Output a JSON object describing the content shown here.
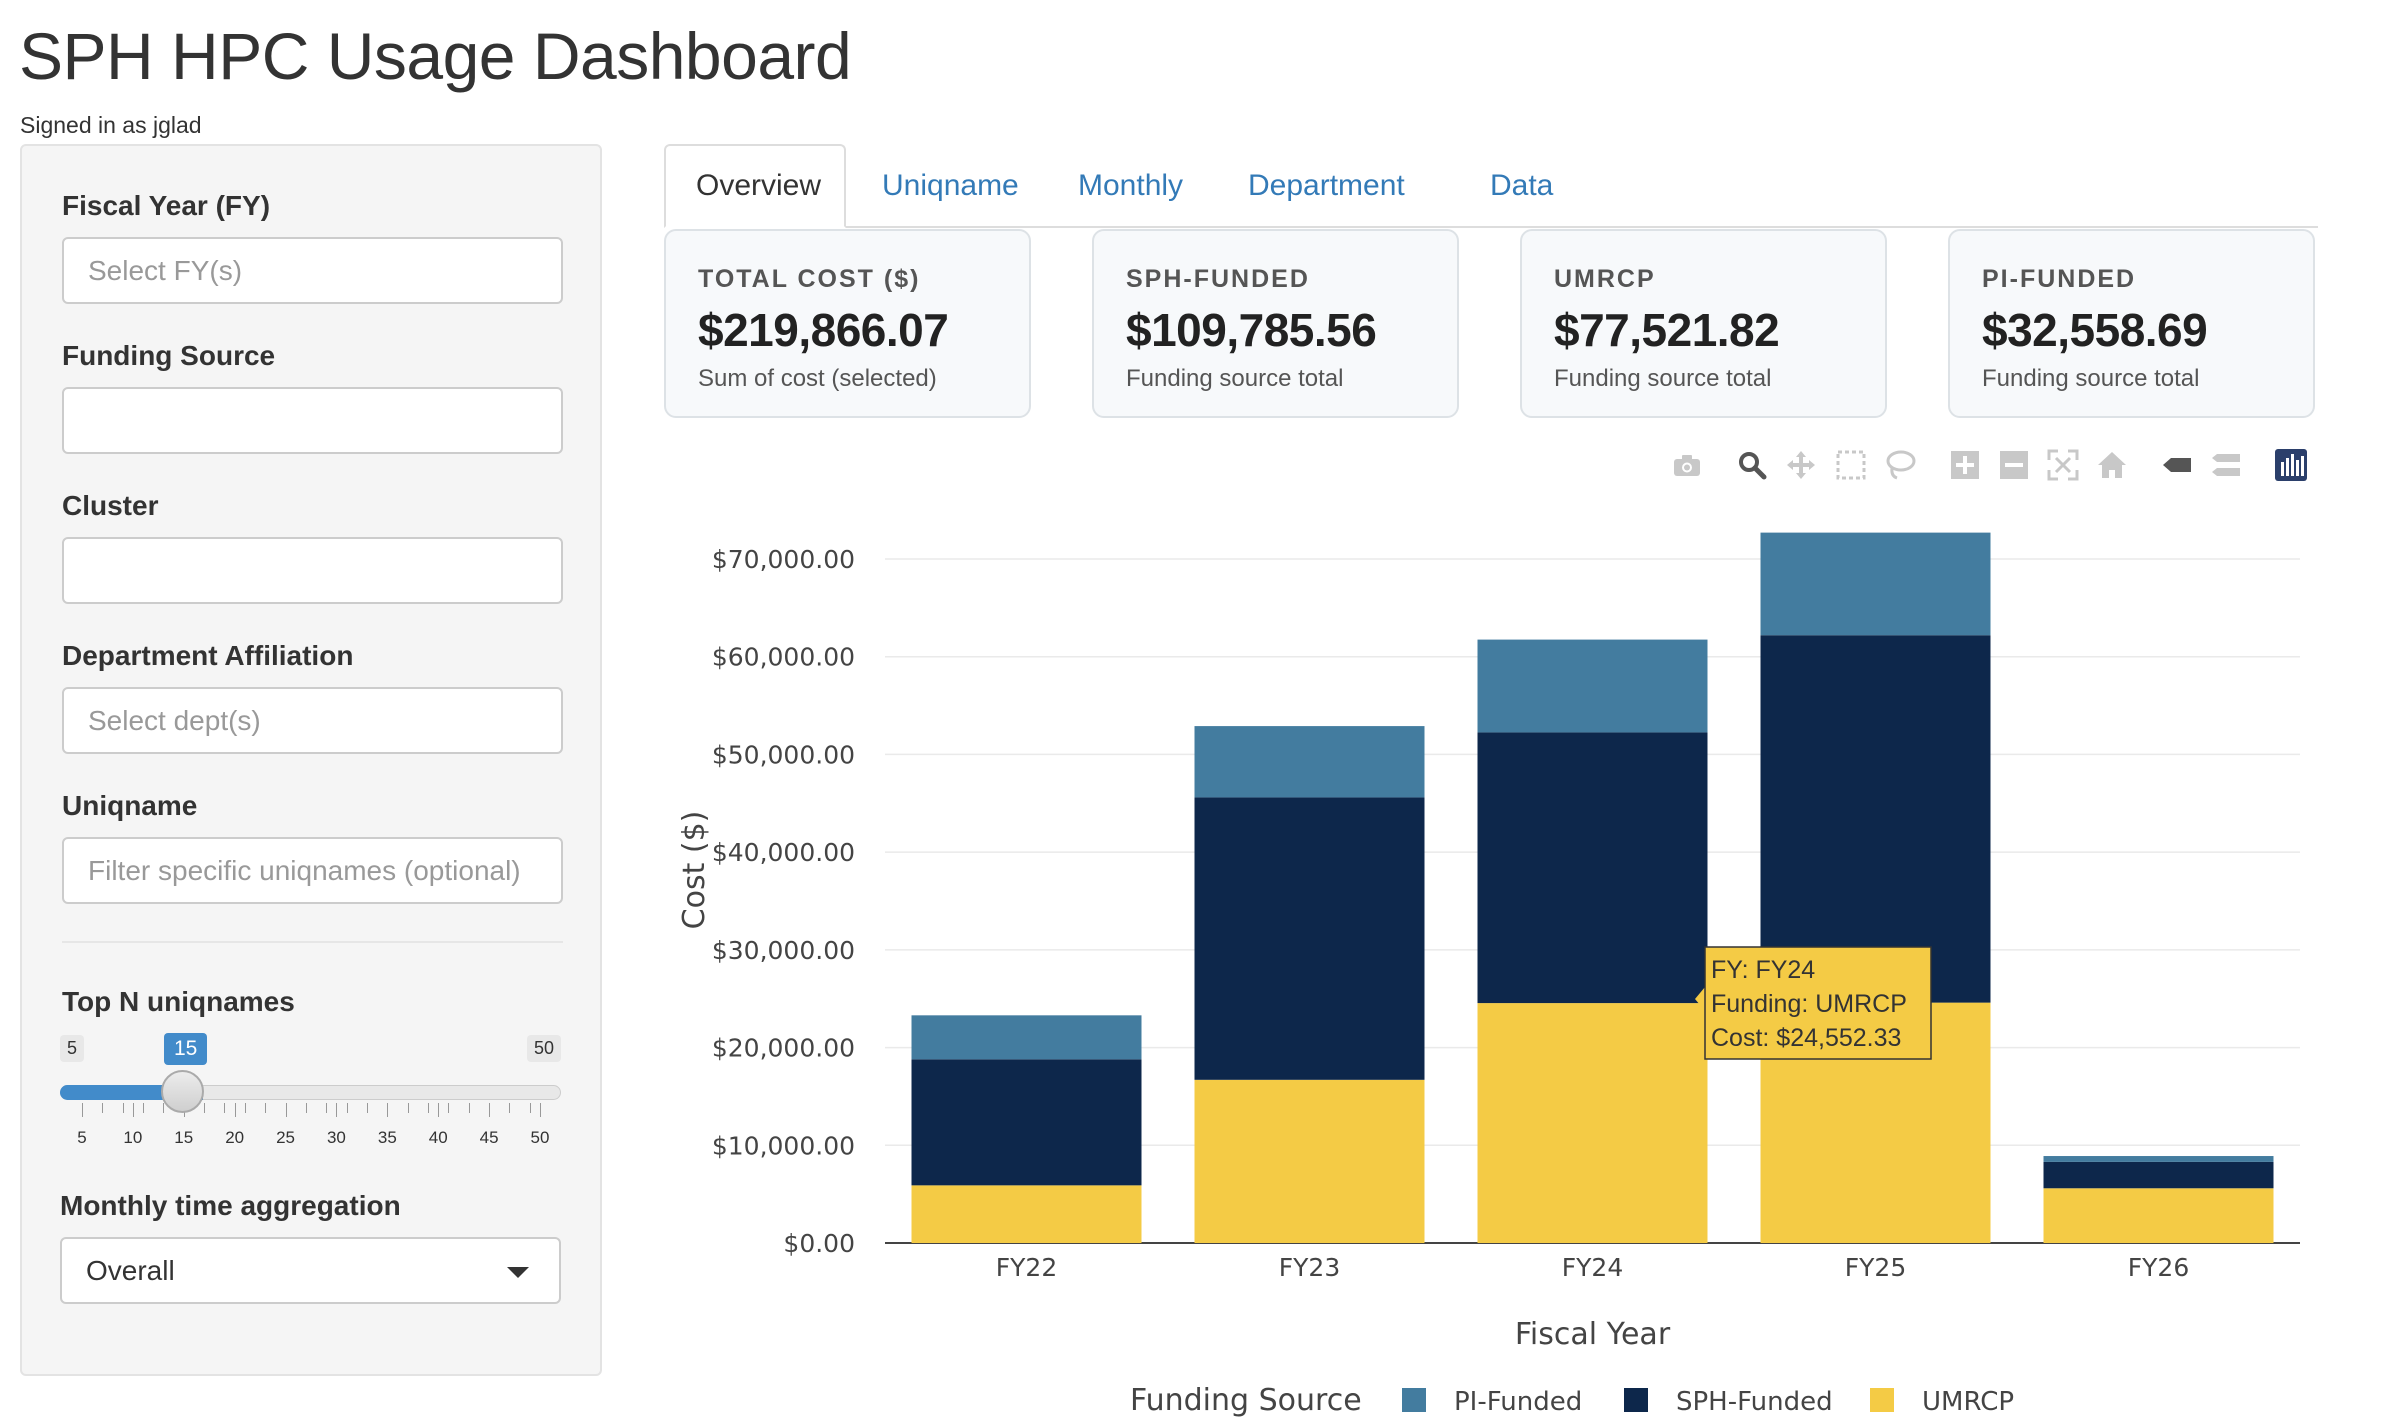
{
  "header": {
    "title": "SPH HPC Usage Dashboard",
    "signed_in": "Signed in as jglad"
  },
  "sidebar": {
    "fiscal_year": {
      "label": "Fiscal Year (FY)",
      "placeholder": "Select FY(s)"
    },
    "funding_source": {
      "label": "Funding Source",
      "value": ""
    },
    "cluster": {
      "label": "Cluster",
      "value": ""
    },
    "department": {
      "label": "Department Affiliation",
      "placeholder": "Select dept(s)"
    },
    "uniqname": {
      "label": "Uniqname",
      "placeholder": "Filter specific uniqnames (optional)"
    },
    "top_n": {
      "label": "Top N uniqnames",
      "min": 5,
      "max": 50,
      "value": 15,
      "min_label": "5",
      "max_label": "50",
      "value_label": "15",
      "tick_labels": [
        "5",
        "10",
        "15",
        "20",
        "25",
        "30",
        "35",
        "40",
        "45",
        "50"
      ]
    },
    "aggregation": {
      "label": "Monthly time aggregation",
      "value": "Overall"
    }
  },
  "tabs": [
    {
      "label": "Overview",
      "active": true
    },
    {
      "label": "Uniqname",
      "active": false
    },
    {
      "label": "Monthly",
      "active": false
    },
    {
      "label": "Department",
      "active": false
    },
    {
      "label": "Data",
      "active": false
    }
  ],
  "cards": [
    {
      "label": "TOTAL COST ($)",
      "value": "$219,866.07",
      "sub": "Sum of cost (selected)"
    },
    {
      "label": "SPH-FUNDED",
      "value": "$109,785.56",
      "sub": "Funding source total"
    },
    {
      "label": "UMRCP",
      "value": "$77,521.82",
      "sub": "Funding source total"
    },
    {
      "label": "PI-FUNDED",
      "value": "$32,558.69",
      "sub": "Funding source total"
    }
  ],
  "modebar": [
    "camera-icon",
    "zoom-icon",
    "pan-icon",
    "box-select-icon",
    "lasso-icon",
    "zoom-in-icon",
    "zoom-out-icon",
    "autoscale-icon",
    "reset-axes-icon",
    "hover-closest-icon",
    "hover-compare-icon",
    "plotly-logo-icon"
  ],
  "chart_data": {
    "type": "bar",
    "stacked": true,
    "categories": [
      "FY22",
      "FY23",
      "FY24",
      "FY25",
      "FY26"
    ],
    "series": [
      {
        "name": "UMRCP",
        "color": "#f4cb45",
        "values": [
          5900,
          16700,
          24552.33,
          24600,
          5600
        ]
      },
      {
        "name": "SPH-Funded",
        "color": "#0d274b",
        "values": [
          12900,
          28900,
          27700,
          37600,
          2700
        ]
      },
      {
        "name": "PI-Funded",
        "color": "#437c9f",
        "values": [
          4500,
          7300,
          9500,
          10500,
          600
        ]
      }
    ],
    "xlabel": "Fiscal Year",
    "ylabel": "Cost ($)",
    "ylim": [
      0,
      72000
    ],
    "y_ticks": [
      "$0.00",
      "$10,000.00",
      "$20,000.00",
      "$30,000.00",
      "$40,000.00",
      "$50,000.00",
      "$60,000.00",
      "$70,000.00"
    ],
    "legend_title": "Funding Source",
    "legend_order": [
      "PI-Funded",
      "SPH-Funded",
      "UMRCP"
    ],
    "legend_placement": "bottom",
    "grid": true,
    "tooltip": {
      "lines": [
        "FY: FY24",
        "Funding: UMRCP",
        "Cost: $24,552.33"
      ],
      "bg": "#f4cb45"
    }
  }
}
